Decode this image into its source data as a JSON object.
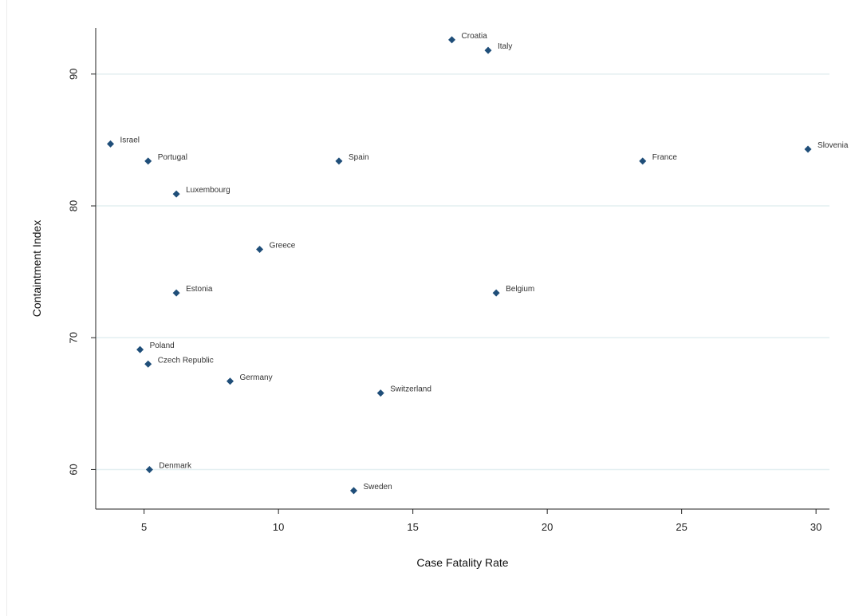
{
  "chart_data": {
    "type": "scatter",
    "title": "",
    "xlabel": "Case Fatality Rate",
    "ylabel": "Containtment Index",
    "xlim": [
      3.2,
      30.5
    ],
    "ylim": [
      57,
      93.5
    ],
    "xticks": [
      5,
      10,
      15,
      20,
      25,
      30
    ],
    "yticks": [
      60,
      70,
      80,
      90
    ],
    "grid": "horizontal",
    "marker": "diamond",
    "marker_color": "#1f4e79",
    "grid_color": "#e3eff1",
    "points": [
      {
        "label": "Croatia",
        "x": 16.45,
        "y": 92.6
      },
      {
        "label": "Italy",
        "x": 17.8,
        "y": 91.8
      },
      {
        "label": "Israel",
        "x": 3.75,
        "y": 84.7
      },
      {
        "label": "Portugal",
        "x": 5.15,
        "y": 83.4
      },
      {
        "label": "Spain",
        "x": 12.25,
        "y": 83.4
      },
      {
        "label": "France",
        "x": 23.55,
        "y": 83.4
      },
      {
        "label": "Slovenia",
        "x": 29.7,
        "y": 84.3
      },
      {
        "label": "Luxembourg",
        "x": 6.2,
        "y": 80.9
      },
      {
        "label": "Greece",
        "x": 9.3,
        "y": 76.7
      },
      {
        "label": "Estonia",
        "x": 6.2,
        "y": 73.4
      },
      {
        "label": "Belgium",
        "x": 18.1,
        "y": 73.4
      },
      {
        "label": "Poland",
        "x": 4.85,
        "y": 69.1
      },
      {
        "label": "Czech Republic",
        "x": 5.15,
        "y": 68.0
      },
      {
        "label": "Germany",
        "x": 8.2,
        "y": 66.7
      },
      {
        "label": "Switzerland",
        "x": 13.8,
        "y": 65.8
      },
      {
        "label": "Denmark",
        "x": 5.2,
        "y": 60.0
      },
      {
        "label": "Sweden",
        "x": 12.8,
        "y": 58.4
      }
    ]
  }
}
